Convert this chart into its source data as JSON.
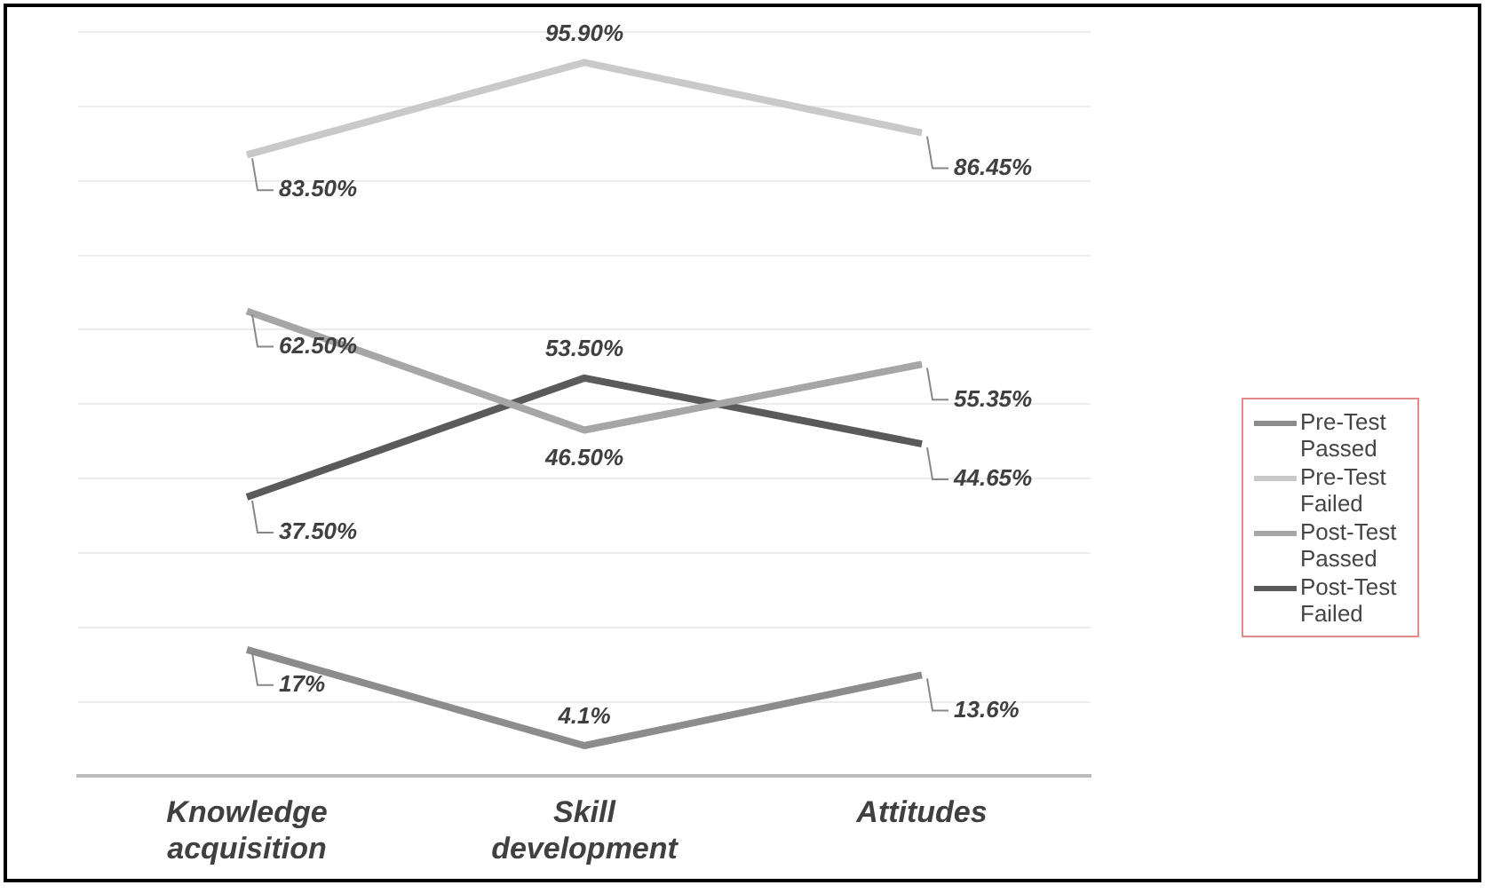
{
  "chart_data": {
    "type": "line",
    "categories": [
      "Knowledge acquisition",
      "Skill development",
      "Attitudes"
    ],
    "series": [
      {
        "name": "Pre-Test Passed",
        "color": "#8c8c8c",
        "values": [
          17,
          4.1,
          13.6
        ],
        "value_labels": [
          "17%",
          "4.1%",
          "13.6%"
        ]
      },
      {
        "name": "Pre-Test Failed",
        "color": "#c9c9c9",
        "values": [
          83.5,
          95.9,
          86.45
        ],
        "value_labels": [
          "83.50%",
          "95.90%",
          "86.45%"
        ]
      },
      {
        "name": "Post-Test Passed",
        "color": "#a6a6a6",
        "values": [
          62.5,
          46.5,
          55.35
        ],
        "value_labels": [
          "62.50%",
          "46.50%",
          "55.35%"
        ]
      },
      {
        "name": "Post-Test Failed",
        "color": "#5a5a5a",
        "values": [
          37.5,
          53.5,
          44.65
        ],
        "value_labels": [
          "37.50%",
          "53.50%",
          "44.65%"
        ]
      }
    ],
    "ylim": [
      0,
      100
    ],
    "yticks": [
      {
        "value": 0,
        "label": null
      },
      {
        "value": 10,
        "label": null
      },
      {
        "value": 20,
        "label": null
      },
      {
        "value": 30,
        "label": null
      },
      {
        "value": 40,
        "label": null
      },
      {
        "value": 50,
        "label": null
      },
      {
        "value": 60,
        "label": null
      },
      {
        "value": 70,
        "label": null
      },
      {
        "value": 80,
        "label": null
      },
      {
        "value": 90,
        "label": null
      },
      {
        "value": 100,
        "label": null
      }
    ],
    "grid": "y",
    "tick_labels": "x",
    "legend": "right",
    "marker": "none",
    "line_style": "solid"
  }
}
